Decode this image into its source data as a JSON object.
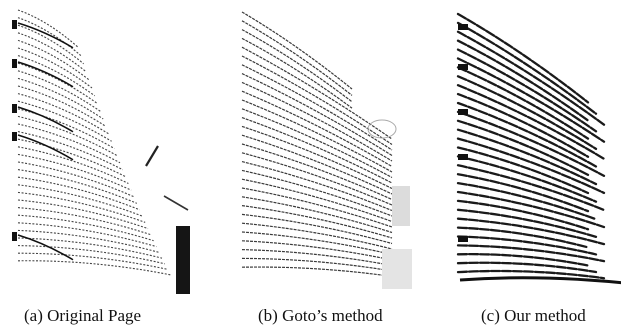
{
  "figure": {
    "panels": [
      {
        "id": "a",
        "caption": "(a) Original Page"
      },
      {
        "id": "b",
        "caption": "(b) Goto’s method"
      },
      {
        "id": "c",
        "caption": "(c) Our method"
      }
    ]
  }
}
